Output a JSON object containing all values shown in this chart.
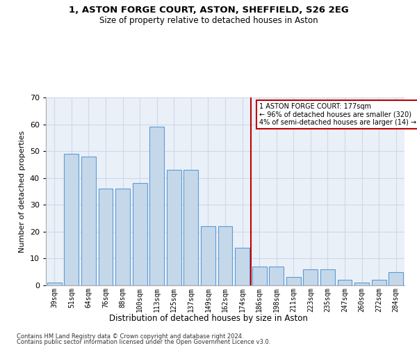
{
  "title1": "1, ASTON FORGE COURT, ASTON, SHEFFIELD, S26 2EG",
  "title2": "Size of property relative to detached houses in Aston",
  "xlabel": "Distribution of detached houses by size in Aston",
  "ylabel": "Number of detached properties",
  "categories": [
    "39sqm",
    "51sqm",
    "64sqm",
    "76sqm",
    "88sqm",
    "100sqm",
    "113sqm",
    "125sqm",
    "137sqm",
    "149sqm",
    "162sqm",
    "174sqm",
    "186sqm",
    "198sqm",
    "211sqm",
    "223sqm",
    "235sqm",
    "247sqm",
    "260sqm",
    "272sqm",
    "284sqm"
  ],
  "bar_heights": [
    1,
    49,
    48,
    36,
    36,
    38,
    59,
    43,
    43,
    22,
    22,
    14,
    7,
    7,
    3,
    6,
    6,
    2,
    1,
    2,
    5
  ],
  "bar_color": "#c5d8ea",
  "bar_edgecolor": "#5b9bd5",
  "vline_color": "#c00000",
  "annotation_text": "1 ASTON FORGE COURT: 177sqm\n← 96% of detached houses are smaller (320)\n4% of semi-detached houses are larger (14) →",
  "annotation_box_color": "#c00000",
  "ylim": [
    0,
    70
  ],
  "yticks": [
    0,
    10,
    20,
    30,
    40,
    50,
    60,
    70
  ],
  "grid_color": "#d0d8e8",
  "bg_color": "#eaf0f8",
  "footer1": "Contains HM Land Registry data © Crown copyright and database right 2024.",
  "footer2": "Contains public sector information licensed under the Open Government Licence v3.0."
}
